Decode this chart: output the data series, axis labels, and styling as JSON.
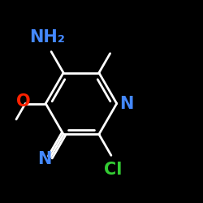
{
  "bg_color": "#000000",
  "bond_color": "#ffffff",
  "bond_width": 2.0,
  "atom_colors": {
    "N_ring": "#4488ff",
    "N_nitrile": "#4488ff",
    "N_amino": "#4488ff",
    "O": "#ff2200",
    "Cl": "#33cc33"
  },
  "label_NH2": {
    "text": "NH₂",
    "color": "#4488ff",
    "fontsize": 15
  },
  "label_O": {
    "text": "O",
    "color": "#ff2200",
    "fontsize": 15
  },
  "label_N_nitrile": {
    "text": "N",
    "color": "#4488ff",
    "fontsize": 15
  },
  "label_N_ring": {
    "text": "N",
    "color": "#4488ff",
    "fontsize": 15
  },
  "label_Cl": {
    "text": "Cl",
    "color": "#33cc33",
    "fontsize": 15
  }
}
